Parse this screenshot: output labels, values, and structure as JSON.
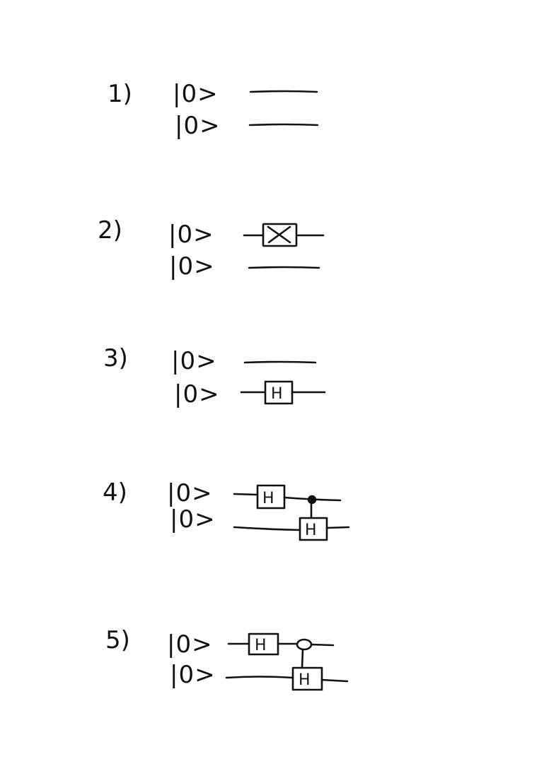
{
  "problems": [
    {
      "label": "1)",
      "qubits": [
        {
          "state": "|0>",
          "gates": []
        },
        {
          "state": "|0>",
          "gates": []
        }
      ]
    },
    {
      "label": "2)",
      "qubits": [
        {
          "state": "|0>",
          "gates": [
            "X"
          ]
        },
        {
          "state": "|0>",
          "gates": []
        }
      ]
    },
    {
      "label": "3)",
      "qubits": [
        {
          "state": "|0>",
          "gates": []
        },
        {
          "state": "|0>",
          "gates": [
            "H"
          ]
        }
      ]
    },
    {
      "label": "4)",
      "qubits": [
        {
          "state": "|0>",
          "gates": [
            "H"
          ]
        },
        {
          "state": "|0>",
          "gates": [
            "H"
          ]
        }
      ],
      "control": {
        "type": "filled",
        "target_gate": "H"
      }
    },
    {
      "label": "5)",
      "qubits": [
        {
          "state": "|0>",
          "gates": [
            "H"
          ]
        },
        {
          "state": "|0>",
          "gates": [
            "H"
          ]
        }
      ],
      "control": {
        "type": "open",
        "target_gate": "H"
      }
    }
  ]
}
